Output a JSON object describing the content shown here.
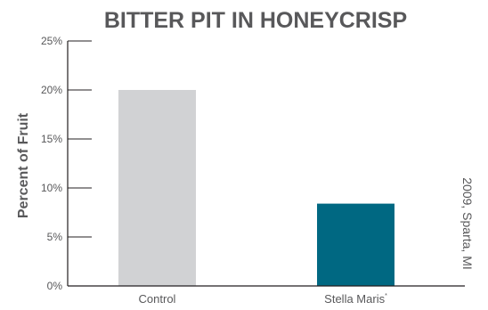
{
  "chart_data": {
    "type": "bar",
    "title": "BITTER PIT IN HONEYCRISP",
    "ylabel": "Percent of Fruit",
    "xlabel": "",
    "categories": [
      "Control",
      "Stella Maris"
    ],
    "category_superscripts": [
      "",
      "*"
    ],
    "values": [
      20,
      8.4
    ],
    "ylim": [
      0,
      25
    ],
    "yticks": [
      0,
      5,
      10,
      15,
      20,
      25
    ],
    "ytick_labels": [
      "0%",
      "5%",
      "10%",
      "15%",
      "20%",
      "25%"
    ],
    "bar_colors": [
      "#d1d2d4",
      "#006882"
    ],
    "grid": false,
    "legend": "none",
    "annotation": "2009, Sparta, MI"
  },
  "colors": {
    "text": "#58585a",
    "axis": "#231f20"
  }
}
